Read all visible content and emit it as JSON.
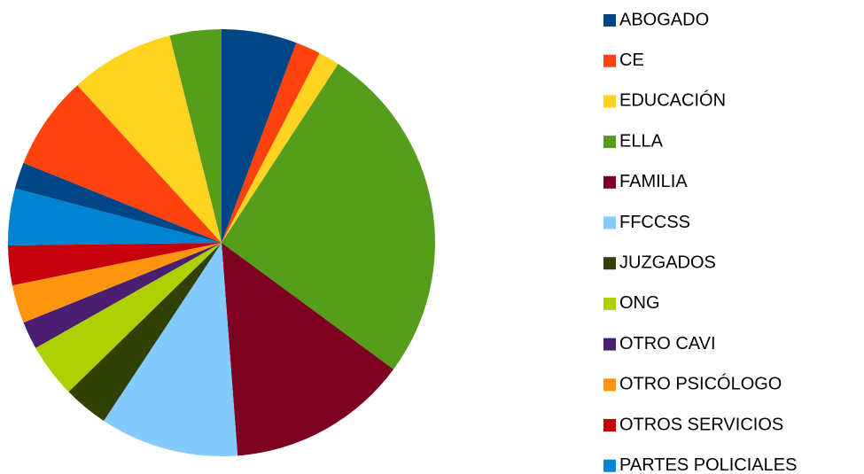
{
  "chart_data": {
    "type": "pie",
    "categories": [
      "ABOGADO",
      "CE",
      "EDUCACIÓN",
      "ELLA",
      "FAMILIA",
      "FFCCSS",
      "JUZGADOS",
      "ONG",
      "OTRO CAVI",
      "OTRO PSICÓLOGO",
      "OTROS SERVICIOS",
      "PARTES POLICIALES",
      null,
      null,
      null,
      null
    ],
    "values": [
      5.7,
      1.9,
      1.6,
      25.9,
      13.7,
      10.5,
      3.4,
      4.1,
      2.1,
      2.9,
      3.0,
      4.3,
      2.0,
      7.1,
      7.9,
      3.9
    ],
    "colors": [
      "#004586",
      "#ff420e",
      "#ffd320",
      "#579d1c",
      "#7e0021",
      "#83caff",
      "#314004",
      "#aecf00",
      "#4b1f6f",
      "#ff950e",
      "#c5000b",
      "#0084d1",
      "#004586",
      "#ff420e",
      "#ffd320",
      "#579d1c"
    ],
    "legend": "right"
  }
}
